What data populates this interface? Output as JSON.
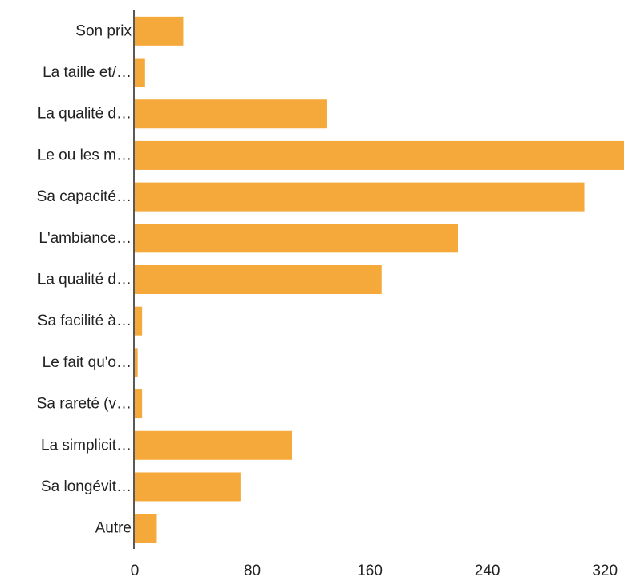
{
  "chart_data": {
    "type": "bar",
    "orientation": "horizontal",
    "title": "",
    "xlabel": "",
    "ylabel": "",
    "categories": [
      "Son prix",
      "La taille et/…",
      "La qualité d…",
      "Le ou les m…",
      "Sa capacité…",
      "L'ambiance…",
      "La qualité d…",
      "Sa facilité à…",
      "Le fait qu'o…",
      "Sa rareté (v…",
      "La simplicit…",
      "Sa longévit…",
      "Autre"
    ],
    "values": [
      33,
      7,
      131,
      333,
      306,
      220,
      168,
      5,
      2,
      5,
      107,
      72,
      15
    ],
    "xlim": [
      0,
      333
    ],
    "xticks": [
      0,
      80,
      160,
      240,
      320
    ],
    "xtick_labels": [
      "0",
      "80",
      "160",
      "240",
      "320"
    ],
    "grid": false,
    "legend": "none",
    "colors": {
      "bar": "#f5a93b",
      "axis": "#222222"
    }
  }
}
